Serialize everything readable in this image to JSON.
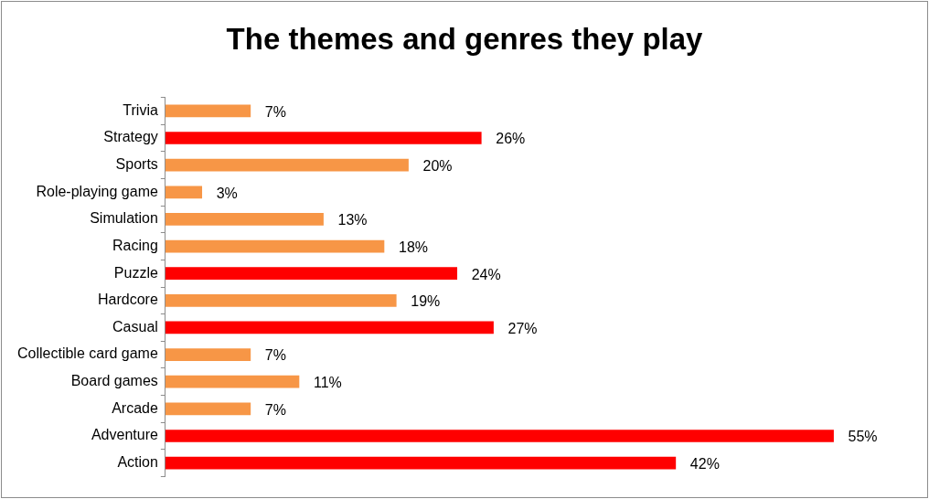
{
  "chart_data": {
    "type": "bar",
    "orientation": "horizontal",
    "title": "The themes and genres they play",
    "categories": [
      "Trivia",
      "Strategy",
      "Sports",
      "Role-playing game",
      "Simulation",
      "Racing",
      "Puzzle",
      "Hardcore",
      "Casual",
      "Collectible card game",
      "Board games",
      "Arcade",
      "Adventure",
      "Action"
    ],
    "values": [
      7,
      26,
      20,
      3,
      13,
      18,
      24,
      19,
      27,
      7,
      11,
      7,
      55,
      42
    ],
    "colors": [
      "#f79646",
      "#ff0000",
      "#f79646",
      "#f79646",
      "#f79646",
      "#f79646",
      "#ff0000",
      "#f79646",
      "#ff0000",
      "#f79646",
      "#f79646",
      "#f79646",
      "#ff0000",
      "#ff0000"
    ],
    "value_labels": [
      "7%",
      "26%",
      "20%",
      "3%",
      "13%",
      "18%",
      "24%",
      "19%",
      "27%",
      "7%",
      "11%",
      "7%",
      "55%",
      "42%"
    ],
    "legend": false
  }
}
